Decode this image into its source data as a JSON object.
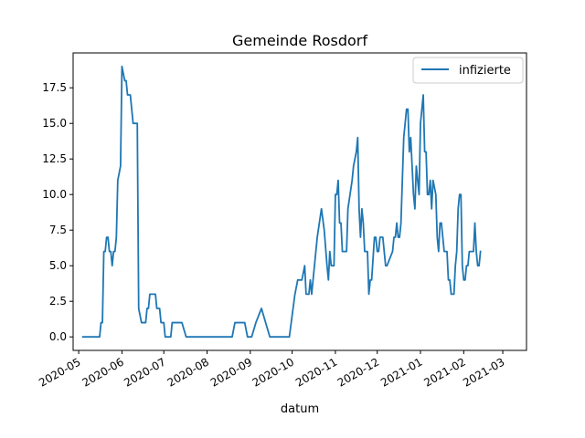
{
  "chart_data": {
    "type": "line",
    "title": "Gemeinde Rosdorf",
    "xlabel": "datum",
    "ylabel": "",
    "x_range": [
      "2020-04-27",
      "2021-03-18"
    ],
    "ylim": [
      -0.95,
      19.95
    ],
    "x_ticks": [
      {
        "date": "2020-05-01",
        "label": "2020-05"
      },
      {
        "date": "2020-06-01",
        "label": "2020-06"
      },
      {
        "date": "2020-07-01",
        "label": "2020-07"
      },
      {
        "date": "2020-08-01",
        "label": "2020-08"
      },
      {
        "date": "2020-09-01",
        "label": "2020-09"
      },
      {
        "date": "2020-10-01",
        "label": "2020-10"
      },
      {
        "date": "2020-11-01",
        "label": "2020-11"
      },
      {
        "date": "2020-12-01",
        "label": "2020-12"
      },
      {
        "date": "2021-01-01",
        "label": "2021-01"
      },
      {
        "date": "2021-02-01",
        "label": "2021-02"
      },
      {
        "date": "2021-03-01",
        "label": "2021-03"
      }
    ],
    "y_ticks": [
      {
        "value": 0,
        "label": "0.0"
      },
      {
        "value": 2.5,
        "label": "2.5"
      },
      {
        "value": 5,
        "label": "5.0"
      },
      {
        "value": 7.5,
        "label": "7.5"
      },
      {
        "value": 10,
        "label": "10.0"
      },
      {
        "value": 12.5,
        "label": "12.5"
      },
      {
        "value": 15,
        "label": "15.0"
      },
      {
        "value": 17.5,
        "label": "17.5"
      }
    ],
    "grid": false,
    "legend_position": "top-right",
    "series": [
      {
        "name": "infizierte",
        "color": "#1f77b4",
        "points": [
          [
            "2020-05-04",
            0
          ],
          [
            "2020-05-16",
            0
          ],
          [
            "2020-05-17",
            1
          ],
          [
            "2020-05-18",
            1
          ],
          [
            "2020-05-19",
            6
          ],
          [
            "2020-05-20",
            6
          ],
          [
            "2020-05-21",
            7
          ],
          [
            "2020-05-22",
            7
          ],
          [
            "2020-05-23",
            6
          ],
          [
            "2020-05-24",
            6
          ],
          [
            "2020-05-25",
            5
          ],
          [
            "2020-05-26",
            6
          ],
          [
            "2020-05-27",
            6
          ],
          [
            "2020-05-28",
            7
          ],
          [
            "2020-05-29",
            11
          ],
          [
            "2020-05-30",
            11.5
          ],
          [
            "2020-05-31",
            12
          ],
          [
            "2020-06-01",
            19
          ],
          [
            "2020-06-02",
            18.5
          ],
          [
            "2020-06-03",
            18
          ],
          [
            "2020-06-04",
            18
          ],
          [
            "2020-06-05",
            17
          ],
          [
            "2020-06-07",
            17
          ],
          [
            "2020-06-09",
            15
          ],
          [
            "2020-06-12",
            15
          ],
          [
            "2020-06-13",
            2
          ],
          [
            "2020-06-15",
            1
          ],
          [
            "2020-06-18",
            1
          ],
          [
            "2020-06-19",
            2
          ],
          [
            "2020-06-20",
            2
          ],
          [
            "2020-06-21",
            3
          ],
          [
            "2020-06-25",
            3
          ],
          [
            "2020-06-26",
            2
          ],
          [
            "2020-06-28",
            2
          ],
          [
            "2020-06-29",
            1
          ],
          [
            "2020-07-01",
            1
          ],
          [
            "2020-07-02",
            0
          ],
          [
            "2020-07-06",
            0
          ],
          [
            "2020-07-07",
            1
          ],
          [
            "2020-07-14",
            1
          ],
          [
            "2020-07-17",
            0
          ],
          [
            "2020-08-19",
            0
          ],
          [
            "2020-08-21",
            1
          ],
          [
            "2020-08-28",
            1
          ],
          [
            "2020-08-30",
            0
          ],
          [
            "2020-09-02",
            0
          ],
          [
            "2020-09-05",
            1
          ],
          [
            "2020-09-09",
            2
          ],
          [
            "2020-09-15",
            0
          ],
          [
            "2020-09-29",
            0
          ],
          [
            "2020-10-01",
            1.5
          ],
          [
            "2020-10-03",
            3
          ],
          [
            "2020-10-05",
            4
          ],
          [
            "2020-10-08",
            4
          ],
          [
            "2020-10-10",
            5
          ],
          [
            "2020-10-11",
            3
          ],
          [
            "2020-10-13",
            3
          ],
          [
            "2020-10-14",
            4
          ],
          [
            "2020-10-15",
            3
          ],
          [
            "2020-10-17",
            5
          ],
          [
            "2020-10-19",
            7
          ],
          [
            "2020-10-22",
            9
          ],
          [
            "2020-10-24",
            7.5
          ],
          [
            "2020-10-26",
            5
          ],
          [
            "2020-10-27",
            4
          ],
          [
            "2020-10-28",
            6
          ],
          [
            "2020-10-29",
            5
          ],
          [
            "2020-10-31",
            5
          ],
          [
            "2020-11-01",
            10
          ],
          [
            "2020-11-02",
            10
          ],
          [
            "2020-11-03",
            11
          ],
          [
            "2020-11-04",
            8
          ],
          [
            "2020-11-05",
            8
          ],
          [
            "2020-11-06",
            6
          ],
          [
            "2020-11-09",
            6
          ],
          [
            "2020-11-10",
            9
          ],
          [
            "2020-11-13",
            11
          ],
          [
            "2020-11-14",
            12
          ],
          [
            "2020-11-15",
            12.5
          ],
          [
            "2020-11-16",
            13
          ],
          [
            "2020-11-17",
            14
          ],
          [
            "2020-11-18",
            9
          ],
          [
            "2020-11-19",
            7
          ],
          [
            "2020-11-20",
            9
          ],
          [
            "2020-11-21",
            8
          ],
          [
            "2020-11-22",
            6
          ],
          [
            "2020-11-24",
            6
          ],
          [
            "2020-11-25",
            3
          ],
          [
            "2020-11-26",
            4
          ],
          [
            "2020-11-27",
            4
          ],
          [
            "2020-11-29",
            7
          ],
          [
            "2020-11-30",
            7
          ],
          [
            "2020-12-01",
            6
          ],
          [
            "2020-12-02",
            6
          ],
          [
            "2020-12-03",
            7
          ],
          [
            "2020-12-05",
            7
          ],
          [
            "2020-12-07",
            5
          ],
          [
            "2020-12-08",
            5
          ],
          [
            "2020-12-12",
            6
          ],
          [
            "2020-12-13",
            7
          ],
          [
            "2020-12-14",
            7
          ],
          [
            "2020-12-15",
            8
          ],
          [
            "2020-12-16",
            7
          ],
          [
            "2020-12-17",
            7
          ],
          [
            "2020-12-18",
            8
          ],
          [
            "2020-12-19",
            11
          ],
          [
            "2020-12-20",
            14
          ],
          [
            "2020-12-21",
            15
          ],
          [
            "2020-12-22",
            16
          ],
          [
            "2020-12-23",
            16
          ],
          [
            "2020-12-24",
            13
          ],
          [
            "2020-12-25",
            14
          ],
          [
            "2020-12-26",
            12
          ],
          [
            "2020-12-27",
            10
          ],
          [
            "2020-12-28",
            9
          ],
          [
            "2020-12-29",
            12
          ],
          [
            "2020-12-30",
            11
          ],
          [
            "2020-12-31",
            10
          ],
          [
            "2021-01-01",
            15
          ],
          [
            "2021-01-02",
            16
          ],
          [
            "2021-01-03",
            17
          ],
          [
            "2021-01-04",
            13
          ],
          [
            "2021-01-05",
            13
          ],
          [
            "2021-01-06",
            10
          ],
          [
            "2021-01-07",
            10
          ],
          [
            "2021-01-08",
            11
          ],
          [
            "2021-01-09",
            9
          ],
          [
            "2021-01-10",
            11
          ],
          [
            "2021-01-11",
            10.5
          ],
          [
            "2021-01-12",
            10
          ],
          [
            "2021-01-13",
            7
          ],
          [
            "2021-01-14",
            6
          ],
          [
            "2021-01-15",
            8
          ],
          [
            "2021-01-16",
            8
          ],
          [
            "2021-01-17",
            7
          ],
          [
            "2021-01-18",
            6
          ],
          [
            "2021-01-20",
            6
          ],
          [
            "2021-01-21",
            4
          ],
          [
            "2021-01-22",
            4
          ],
          [
            "2021-01-23",
            3
          ],
          [
            "2021-01-25",
            3
          ],
          [
            "2021-01-26",
            5
          ],
          [
            "2021-01-27",
            6
          ],
          [
            "2021-01-28",
            9
          ],
          [
            "2021-01-29",
            10
          ],
          [
            "2021-01-30",
            10
          ],
          [
            "2021-01-31",
            5
          ],
          [
            "2021-02-01",
            4
          ],
          [
            "2021-02-02",
            4
          ],
          [
            "2021-02-03",
            5
          ],
          [
            "2021-02-04",
            5
          ],
          [
            "2021-02-05",
            6
          ],
          [
            "2021-02-08",
            6
          ],
          [
            "2021-02-09",
            8
          ],
          [
            "2021-02-10",
            6
          ],
          [
            "2021-02-11",
            5
          ],
          [
            "2021-02-12",
            5
          ],
          [
            "2021-02-13",
            6
          ]
        ]
      }
    ]
  }
}
